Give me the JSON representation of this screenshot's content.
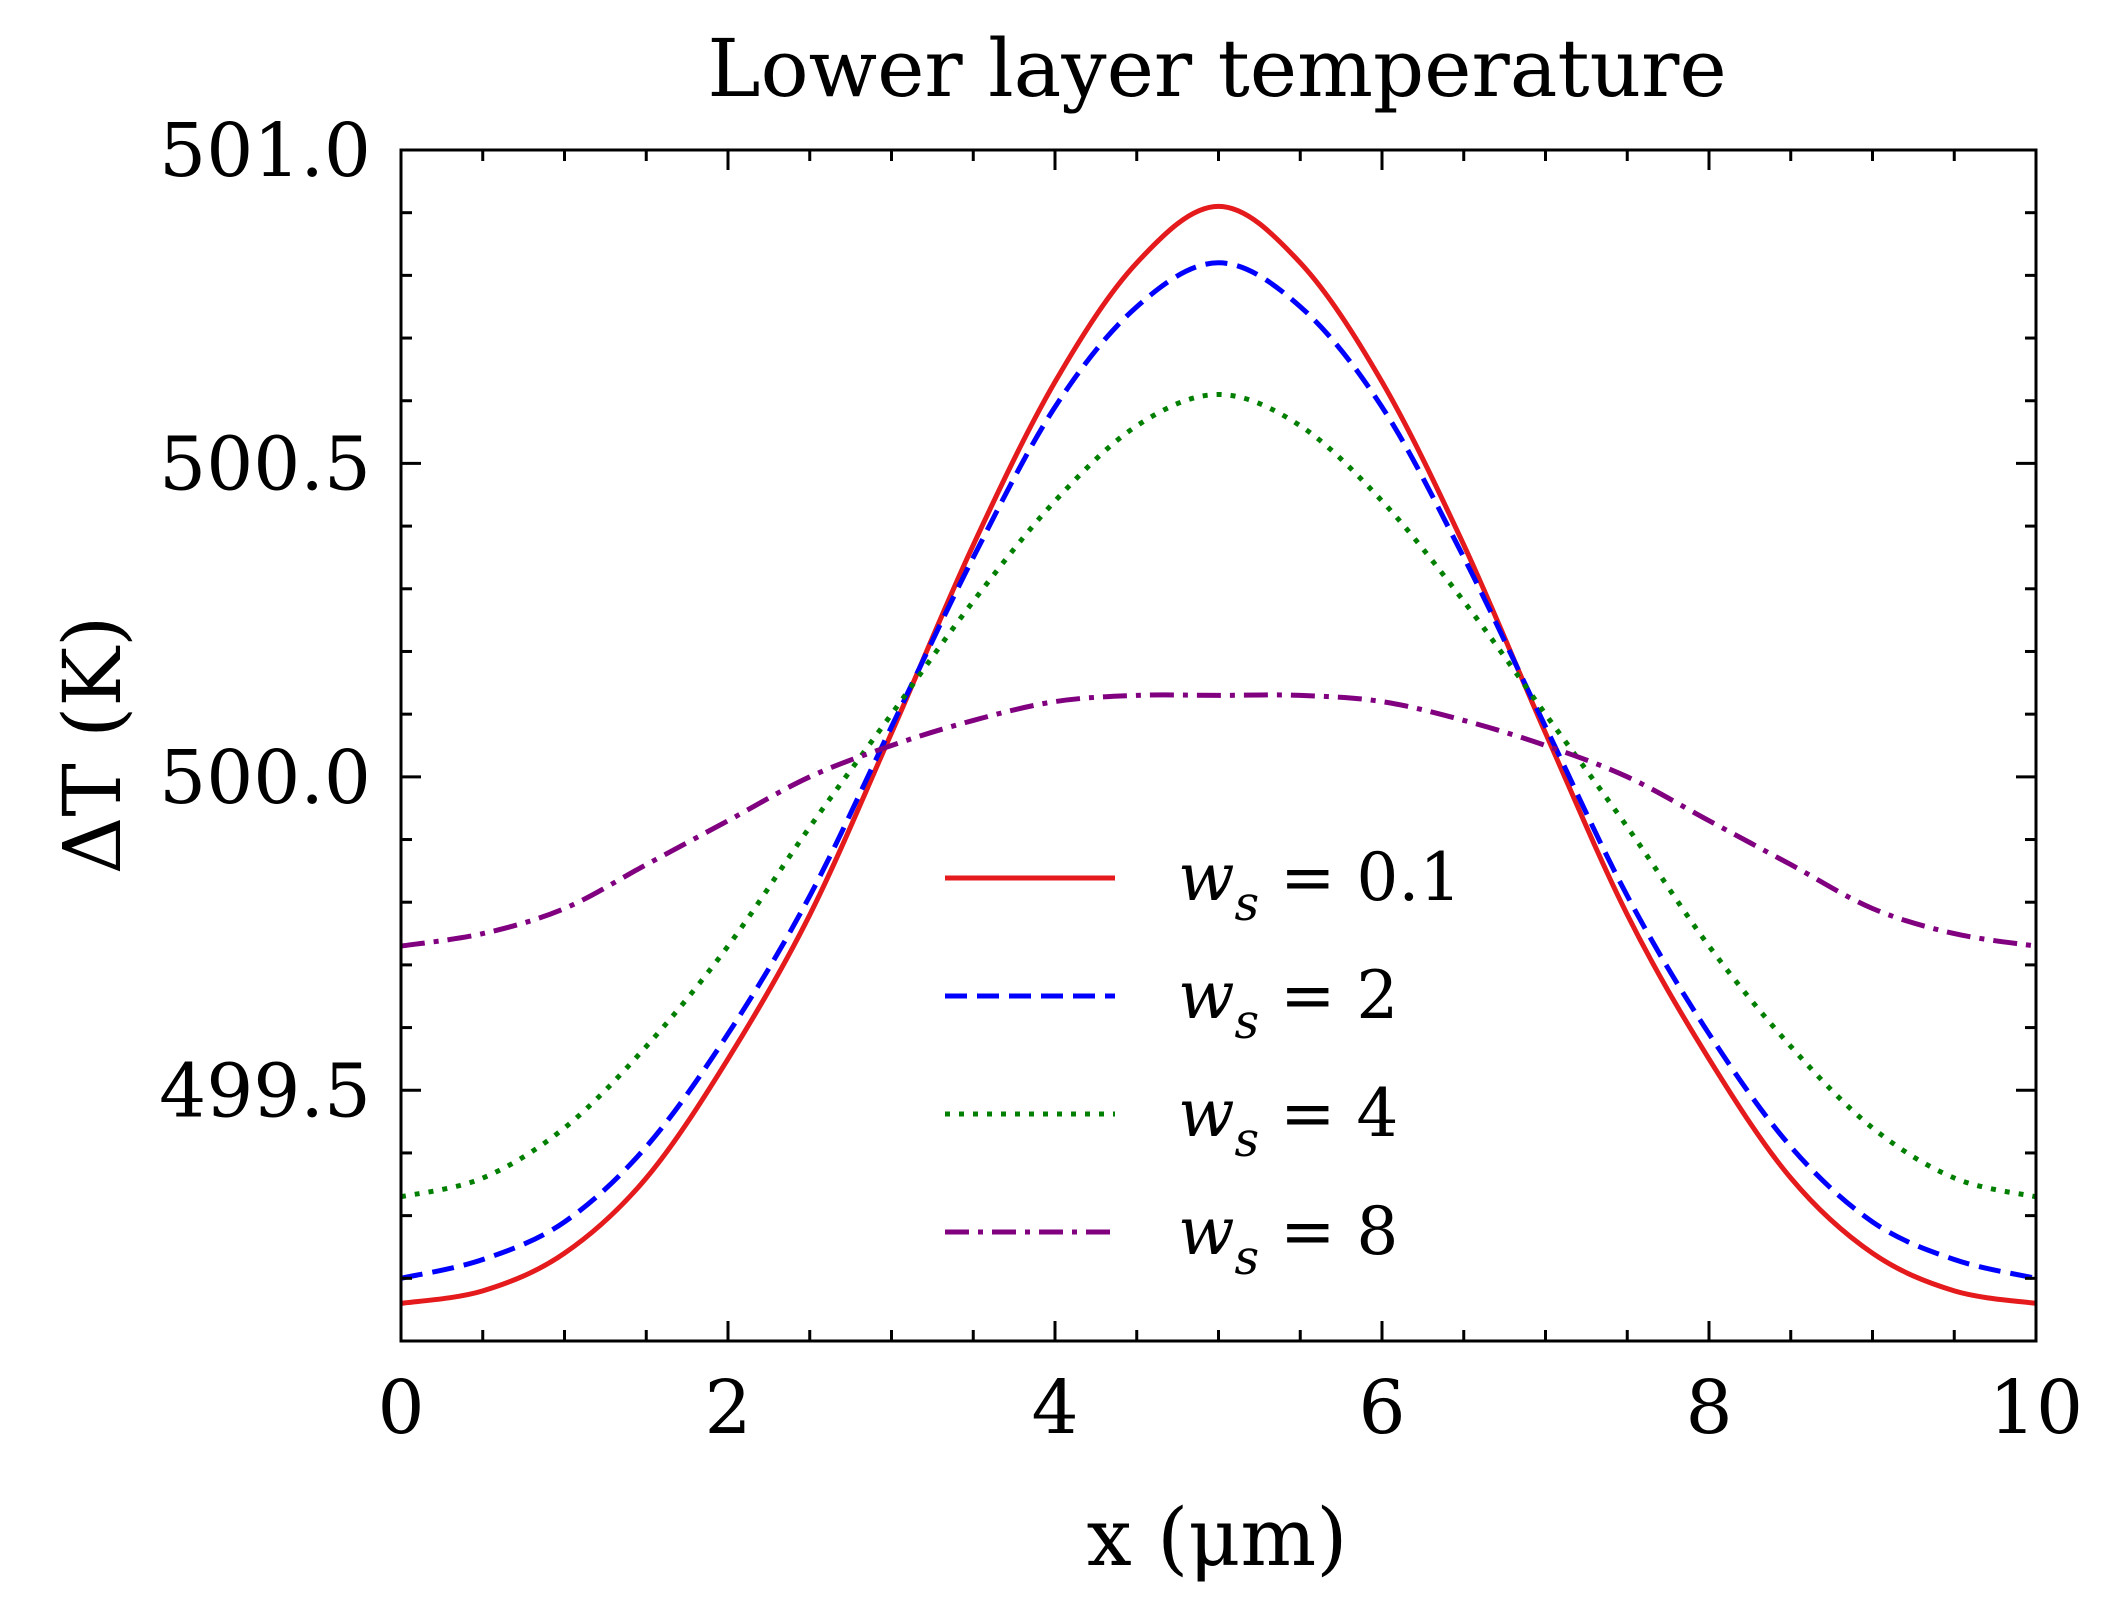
{
  "chart_data": {
    "type": "line",
    "title": "Lower layer temperature",
    "xlabel": "x (μm)",
    "ylabel": "ΔT (K)",
    "xlim": [
      0,
      10
    ],
    "ylim": [
      499.1,
      501.0
    ],
    "xticks": [
      0,
      2,
      4,
      6,
      8,
      10
    ],
    "xtick_labels": [
      "0",
      "2",
      "4",
      "6",
      "8",
      "10"
    ],
    "yticks": [
      499.5,
      500.0,
      500.5,
      501.0
    ],
    "ytick_labels": [
      "499.5",
      "500.0",
      "500.5",
      "501.0"
    ],
    "grid": false,
    "legend_position": "lower-center",
    "series": [
      {
        "name": "w_s = 0.1",
        "color": "#e41a1c",
        "style": "solid",
        "x": [
          0,
          0.5,
          1,
          1.5,
          2,
          2.5,
          3,
          3.5,
          4,
          4.5,
          5,
          5.5,
          6,
          6.5,
          7,
          7.5,
          8,
          8.5,
          9,
          9.5,
          10
        ],
        "y": [
          499.16,
          499.18,
          499.24,
          499.36,
          499.55,
          499.78,
          500.07,
          500.37,
          500.63,
          500.82,
          500.91,
          500.82,
          500.63,
          500.37,
          500.07,
          499.78,
          499.55,
          499.36,
          499.24,
          499.18,
          499.16
        ]
      },
      {
        "name": "w_s = 2",
        "color": "#0000ff",
        "style": "dashed",
        "x": [
          0,
          0.5,
          1,
          1.5,
          2,
          2.5,
          3,
          3.5,
          4,
          4.5,
          5,
          5.5,
          6,
          6.5,
          7,
          7.5,
          8,
          8.5,
          9,
          9.5,
          10
        ],
        "y": [
          499.2,
          499.23,
          499.29,
          499.41,
          499.59,
          499.81,
          500.08,
          500.35,
          500.59,
          500.75,
          500.82,
          500.75,
          500.59,
          500.35,
          500.08,
          499.81,
          499.59,
          499.41,
          499.29,
          499.23,
          499.2
        ]
      },
      {
        "name": "w_s = 4",
        "color": "#007f00",
        "style": "dotted",
        "x": [
          0,
          0.5,
          1,
          1.5,
          2,
          2.5,
          3,
          3.5,
          4,
          4.5,
          5,
          5.5,
          6,
          6.5,
          7,
          7.5,
          8,
          8.5,
          9,
          9.5,
          10
        ],
        "y": [
          499.33,
          499.36,
          499.44,
          499.57,
          499.73,
          499.92,
          500.1,
          500.28,
          500.44,
          500.56,
          500.61,
          500.56,
          500.44,
          500.28,
          500.1,
          499.92,
          499.73,
          499.57,
          499.44,
          499.36,
          499.33
        ]
      },
      {
        "name": "w_s = 8",
        "color": "#800080",
        "style": "dashdot",
        "x": [
          0,
          0.5,
          1,
          1.5,
          2,
          2.5,
          3,
          3.5,
          4,
          4.5,
          5,
          5.5,
          6,
          6.5,
          7,
          7.5,
          8,
          8.5,
          9,
          9.5,
          10
        ],
        "y": [
          499.73,
          499.75,
          499.79,
          499.86,
          499.93,
          500.0,
          500.05,
          500.09,
          500.12,
          500.13,
          500.13,
          500.13,
          500.12,
          500.09,
          500.05,
          500.0,
          499.93,
          499.86,
          499.79,
          499.75,
          499.73
        ]
      }
    ],
    "legend": [
      {
        "symbol": "w",
        "subscript": "s",
        "rest": " = 0.1"
      },
      {
        "symbol": "w",
        "subscript": "s",
        "rest": " = 2"
      },
      {
        "symbol": "w",
        "subscript": "s",
        "rest": " = 4"
      },
      {
        "symbol": "w",
        "subscript": "s",
        "rest": " = 8"
      }
    ]
  }
}
